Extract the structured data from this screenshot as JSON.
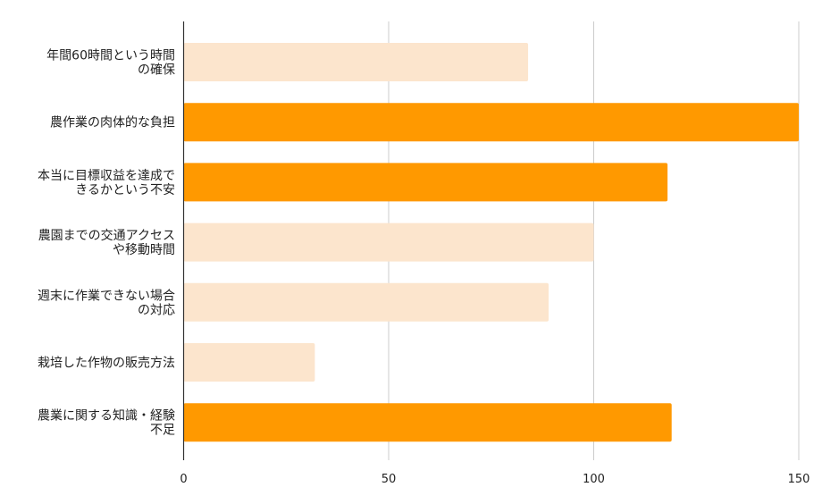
{
  "chart_data": {
    "type": "bar",
    "orientation": "horizontal",
    "title": "",
    "xlabel": "",
    "ylabel": "",
    "categories": [
      [
        "年間60時間という時間",
        "の確保"
      ],
      [
        "農作業の肉体的な負担"
      ],
      [
        "本当に目標収益を達成で",
        "きるかという不安"
      ],
      [
        "農園までの交通アクセス",
        "や移動時間"
      ],
      [
        "週末に作業できない場合",
        "の対応"
      ],
      [
        "栽培した作物の販売方法"
      ],
      [
        "農業に関する知識・経験",
        "不足"
      ]
    ],
    "values": [
      84,
      150,
      118,
      100,
      89,
      32,
      119
    ],
    "highlight": [
      false,
      true,
      true,
      false,
      false,
      false,
      true
    ],
    "xlim": [
      0,
      150
    ],
    "xticks": [
      0,
      50,
      100,
      150
    ],
    "grid": true,
    "colors": {
      "highlight": "#ff9900",
      "normal": "#fce5cd",
      "grid": "#cccccc",
      "axis": "#333333"
    }
  }
}
